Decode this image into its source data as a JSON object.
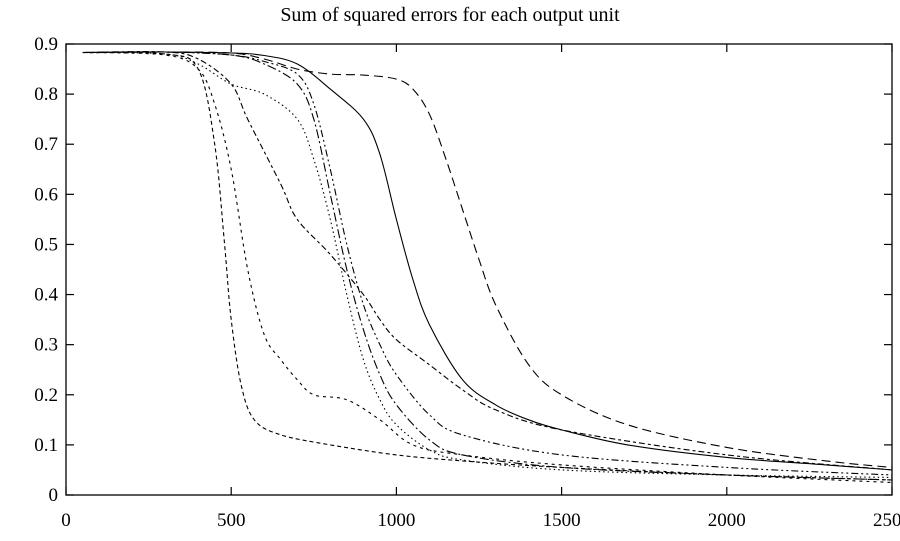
{
  "chart_data": {
    "type": "line",
    "title": "Sum of squared errors for each output unit",
    "xlabel": "",
    "ylabel": "",
    "xlim": [
      0,
      2500
    ],
    "ylim": [
      0,
      0.9
    ],
    "xticks": [
      "0",
      "500",
      "1000",
      "1500",
      "2000",
      "2500"
    ],
    "yticks": [
      "0",
      "0.1",
      "0.2",
      "0.3",
      "0.4",
      "0.5",
      "0.6",
      "0.7",
      "0.8",
      "0.9"
    ],
    "grid": false,
    "legend": "none",
    "series": [
      {
        "style": "solid",
        "dash": "",
        "points": [
          [
            50,
            0.883
          ],
          [
            300,
            0.884
          ],
          [
            500,
            0.882
          ],
          [
            600,
            0.877
          ],
          [
            700,
            0.86
          ],
          [
            800,
            0.81
          ],
          [
            900,
            0.75
          ],
          [
            950,
            0.68
          ],
          [
            1000,
            0.55
          ],
          [
            1050,
            0.43
          ],
          [
            1100,
            0.34
          ],
          [
            1200,
            0.23
          ],
          [
            1300,
            0.18
          ],
          [
            1400,
            0.15
          ],
          [
            1500,
            0.13
          ],
          [
            1700,
            0.1
          ],
          [
            2000,
            0.075
          ],
          [
            2300,
            0.06
          ],
          [
            2500,
            0.05
          ]
        ]
      },
      {
        "style": "dashed",
        "dash": "9,5",
        "points": [
          [
            50,
            0.883
          ],
          [
            300,
            0.884
          ],
          [
            500,
            0.882
          ],
          [
            600,
            0.87
          ],
          [
            700,
            0.85
          ],
          [
            800,
            0.84
          ],
          [
            900,
            0.838
          ],
          [
            1000,
            0.83
          ],
          [
            1050,
            0.81
          ],
          [
            1100,
            0.76
          ],
          [
            1150,
            0.67
          ],
          [
            1200,
            0.57
          ],
          [
            1250,
            0.47
          ],
          [
            1300,
            0.38
          ],
          [
            1400,
            0.26
          ],
          [
            1500,
            0.2
          ],
          [
            1700,
            0.14
          ],
          [
            2000,
            0.095
          ],
          [
            2300,
            0.068
          ],
          [
            2500,
            0.055
          ]
        ]
      },
      {
        "style": "dotted",
        "dash": "1.5,3",
        "points": [
          [
            50,
            0.883
          ],
          [
            300,
            0.88
          ],
          [
            400,
            0.86
          ],
          [
            500,
            0.82
          ],
          [
            600,
            0.8
          ],
          [
            700,
            0.75
          ],
          [
            750,
            0.67
          ],
          [
            800,
            0.55
          ],
          [
            850,
            0.4
          ],
          [
            900,
            0.27
          ],
          [
            950,
            0.19
          ],
          [
            1000,
            0.14
          ],
          [
            1100,
            0.09
          ],
          [
            1200,
            0.07
          ],
          [
            1500,
            0.05
          ],
          [
            2000,
            0.04
          ],
          [
            2500,
            0.035
          ]
        ]
      },
      {
        "style": "dash-dot",
        "dash": "9,3,2,3",
        "points": [
          [
            50,
            0.883
          ],
          [
            300,
            0.884
          ],
          [
            500,
            0.878
          ],
          [
            600,
            0.86
          ],
          [
            700,
            0.82
          ],
          [
            750,
            0.75
          ],
          [
            800,
            0.6
          ],
          [
            850,
            0.45
          ],
          [
            900,
            0.33
          ],
          [
            950,
            0.24
          ],
          [
            1000,
            0.18
          ],
          [
            1100,
            0.11
          ],
          [
            1200,
            0.08
          ],
          [
            1500,
            0.055
          ],
          [
            2000,
            0.04
          ],
          [
            2500,
            0.03
          ]
        ]
      },
      {
        "style": "dash-dot-dot",
        "dash": "7,3,2,3,2,3",
        "points": [
          [
            50,
            0.883
          ],
          [
            300,
            0.884
          ],
          [
            500,
            0.878
          ],
          [
            600,
            0.865
          ],
          [
            700,
            0.84
          ],
          [
            750,
            0.78
          ],
          [
            800,
            0.65
          ],
          [
            850,
            0.5
          ],
          [
            900,
            0.38
          ],
          [
            950,
            0.3
          ],
          [
            1000,
            0.24
          ],
          [
            1100,
            0.16
          ],
          [
            1200,
            0.12
          ],
          [
            1500,
            0.08
          ],
          [
            2000,
            0.055
          ],
          [
            2500,
            0.04
          ]
        ]
      },
      {
        "style": "short-dashed",
        "dash": "4,3",
        "points": [
          [
            50,
            0.883
          ],
          [
            300,
            0.88
          ],
          [
            400,
            0.85
          ],
          [
            450,
            0.7
          ],
          [
            480,
            0.5
          ],
          [
            500,
            0.35
          ],
          [
            530,
            0.22
          ],
          [
            570,
            0.15
          ],
          [
            650,
            0.12
          ],
          [
            800,
            0.1
          ],
          [
            1000,
            0.08
          ],
          [
            1200,
            0.068
          ],
          [
            1500,
            0.055
          ],
          [
            2000,
            0.04
          ],
          [
            2500,
            0.03
          ]
        ]
      },
      {
        "style": "short-dashed-2",
        "dash": "3,4",
        "points": [
          [
            50,
            0.883
          ],
          [
            300,
            0.878
          ],
          [
            400,
            0.85
          ],
          [
            450,
            0.78
          ],
          [
            500,
            0.65
          ],
          [
            550,
            0.45
          ],
          [
            600,
            0.32
          ],
          [
            650,
            0.27
          ],
          [
            700,
            0.23
          ],
          [
            750,
            0.2
          ],
          [
            850,
            0.19
          ],
          [
            950,
            0.15
          ],
          [
            1050,
            0.1
          ],
          [
            1200,
            0.08
          ],
          [
            1500,
            0.06
          ],
          [
            2000,
            0.04
          ],
          [
            2500,
            0.025
          ]
        ]
      },
      {
        "style": "long-short-dashed",
        "dash": "6,3,3,3",
        "points": [
          [
            50,
            0.883
          ],
          [
            300,
            0.884
          ],
          [
            400,
            0.87
          ],
          [
            500,
            0.82
          ],
          [
            550,
            0.75
          ],
          [
            650,
            0.62
          ],
          [
            700,
            0.55
          ],
          [
            800,
            0.48
          ],
          [
            900,
            0.4
          ],
          [
            950,
            0.35
          ],
          [
            1000,
            0.31
          ],
          [
            1100,
            0.26
          ],
          [
            1200,
            0.21
          ],
          [
            1300,
            0.17
          ],
          [
            1500,
            0.13
          ],
          [
            2000,
            0.08
          ],
          [
            2500,
            0.05
          ]
        ]
      }
    ]
  }
}
